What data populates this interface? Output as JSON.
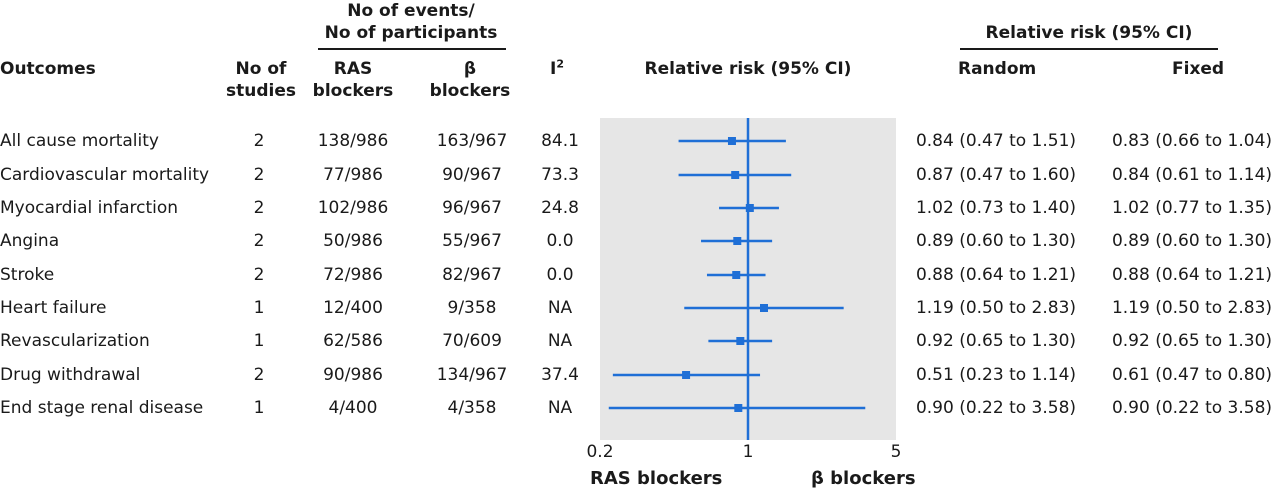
{
  "header": {
    "outcomes": "Outcomes",
    "no_of_studies": [
      "No of",
      "studies"
    ],
    "events_group": [
      "No of events/",
      "No of participants"
    ],
    "ras": [
      "RAS",
      "blockers"
    ],
    "beta": [
      "β",
      "blockers"
    ],
    "i2": "I",
    "i2_sup": "2",
    "plot_title": "Relative risk (95% CI)",
    "rr_group": "Relative risk (95% CI)",
    "random": "Random",
    "fixed": "Fixed"
  },
  "footer": {
    "left": "RAS blockers",
    "right": "β blockers"
  },
  "colors": {
    "marker": "#1f6fd6",
    "reference": "#1f6fd6",
    "plot_background": "#e6e6e6"
  },
  "chart_data": {
    "type": "forest",
    "x_scale": "log",
    "xlim": [
      0.2,
      5
    ],
    "ticks": [
      {
        "value": 0.2,
        "label": "0.2"
      },
      {
        "value": 1,
        "label": "1"
      },
      {
        "value": 5,
        "label": "5"
      }
    ],
    "reference_value": 1,
    "rows": [
      {
        "outcome": "All cause mortality",
        "studies": "2",
        "ras": "138/986",
        "beta": "163/967",
        "i2": "84.1",
        "random": "0.84 (0.47 to 1.51)",
        "fixed": "0.83 (0.66 to 1.04)",
        "rr": 0.84,
        "lo": 0.47,
        "hi": 1.51
      },
      {
        "outcome": "Cardiovascular mortality",
        "studies": "2",
        "ras": "77/986",
        "beta": "90/967",
        "i2": "73.3",
        "random": "0.87 (0.47 to 1.60)",
        "fixed": "0.84 (0.61 to 1.14)",
        "rr": 0.87,
        "lo": 0.47,
        "hi": 1.6
      },
      {
        "outcome": "Myocardial infarction",
        "studies": "2",
        "ras": "102/986",
        "beta": "96/967",
        "i2": "24.8",
        "random": "1.02 (0.73 to 1.40)",
        "fixed": "1.02 (0.77 to 1.35)",
        "rr": 1.02,
        "lo": 0.73,
        "hi": 1.4
      },
      {
        "outcome": "Angina",
        "studies": "2",
        "ras": "50/986",
        "beta": "55/967",
        "i2": "0.0",
        "random": "0.89 (0.60 to 1.30)",
        "fixed": "0.89 (0.60 to 1.30)",
        "rr": 0.89,
        "lo": 0.6,
        "hi": 1.3
      },
      {
        "outcome": "Stroke",
        "studies": "2",
        "ras": "72/986",
        "beta": "82/967",
        "i2": "0.0",
        "random": "0.88 (0.64 to 1.21)",
        "fixed": "0.88 (0.64 to 1.21)",
        "rr": 0.88,
        "lo": 0.64,
        "hi": 1.21
      },
      {
        "outcome": "Heart failure",
        "studies": "1",
        "ras": "12/400",
        "beta": "9/358",
        "i2": "NA",
        "random": "1.19 (0.50 to 2.83)",
        "fixed": "1.19 (0.50 to 2.83)",
        "rr": 1.19,
        "lo": 0.5,
        "hi": 2.83
      },
      {
        "outcome": "Revascularization",
        "studies": "1",
        "ras": "62/586",
        "beta": "70/609",
        "i2": "NA",
        "random": "0.92 (0.65 to 1.30)",
        "fixed": "0.92 (0.65 to 1.30)",
        "rr": 0.92,
        "lo": 0.65,
        "hi": 1.3
      },
      {
        "outcome": "Drug withdrawal",
        "studies": "2",
        "ras": "90/986",
        "beta": "134/967",
        "i2": "37.4",
        "random": "0.51 (0.23 to 1.14)",
        "fixed": "0.61 (0.47 to 0.80)",
        "rr": 0.51,
        "lo": 0.23,
        "hi": 1.14
      },
      {
        "outcome": "End stage renal disease",
        "studies": "1",
        "ras": "4/400",
        "beta": "4/358",
        "i2": "NA",
        "random": "0.90 (0.22 to 3.58)",
        "fixed": "0.90 (0.22 to 3.58)",
        "rr": 0.9,
        "lo": 0.22,
        "hi": 3.58
      }
    ]
  }
}
